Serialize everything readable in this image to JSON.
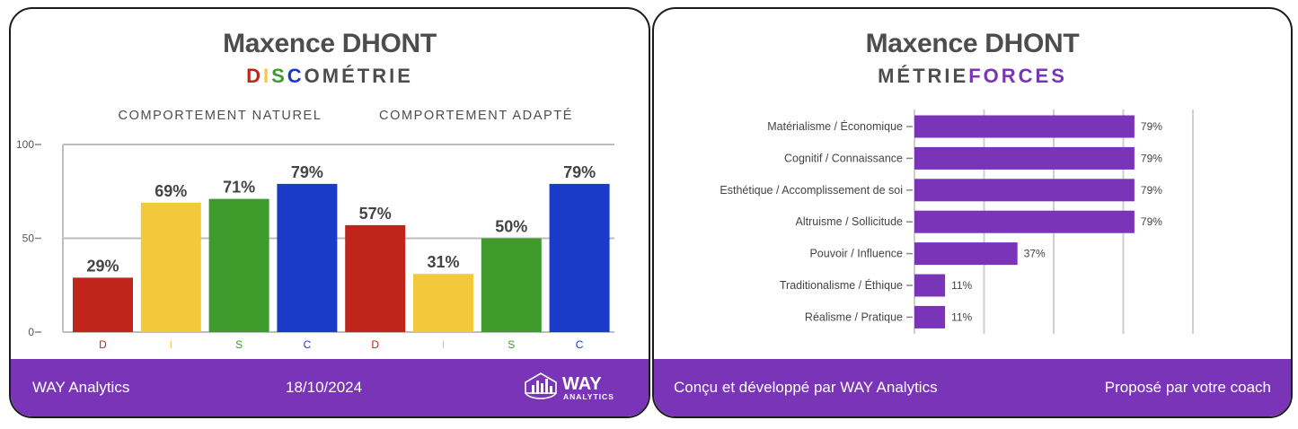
{
  "left": {
    "name": "Maxence DHONT",
    "subtitle_letters": [
      {
        "t": "D",
        "color": "#c0251c"
      },
      {
        "t": "I",
        "color": "#f1c93a"
      },
      {
        "t": "S",
        "color": "#3d9a2b"
      },
      {
        "t": "C",
        "color": "#1a3bc8"
      },
      {
        "t": "OMÉTRIE",
        "color": "#4d4d4d"
      }
    ],
    "footer": {
      "brand": "WAY Analytics",
      "date": "18/10/2024"
    },
    "logo": {
      "word": "WAY",
      "sub": "ANALYTICS"
    }
  },
  "right": {
    "name": "Maxence DHONT",
    "subtitle_parts": [
      {
        "t": "MÉTRIE",
        "color": "#4d4d4d"
      },
      {
        "t": "FORCES",
        "color": "#7a34b8"
      }
    ],
    "footer": {
      "left": "Conçu et développé par WAY Analytics",
      "right": "Proposé par votre coach"
    }
  },
  "chart_data": [
    {
      "type": "bar",
      "title": "DISCOMÉTRIE",
      "groups": [
        "COMPORTEMENT NATUREL",
        "COMPORTEMENT ADAPTÉ"
      ],
      "categories": [
        "D",
        "I",
        "S",
        "C",
        "D",
        "I",
        "S",
        "C"
      ],
      "values": [
        29,
        69,
        71,
        79,
        57,
        31,
        50,
        79
      ],
      "value_labels": [
        "29%",
        "69%",
        "71%",
        "79%",
        "57%",
        "31%",
        "50%",
        "79%"
      ],
      "colors": [
        "#c0251c",
        "#f1c93a",
        "#3d9a2b",
        "#1a3bc8",
        "#c0251c",
        "#f1c93a",
        "#3d9a2b",
        "#1a3bc8"
      ],
      "ylim": [
        0,
        100
      ],
      "yticks": [
        0,
        50,
        100
      ],
      "grid": true
    },
    {
      "type": "bar",
      "orientation": "horizontal",
      "title": "MÉTRIEFORCES",
      "categories": [
        "Matérialisme / Économique",
        "Cognitif / Connaissance",
        "Esthétique / Accomplissement de soi",
        "Altruisme / Sollicitude",
        "Pouvoir / Influence",
        "Traditionalisme / Éthique",
        "Réalisme / Pratique"
      ],
      "values": [
        79,
        79,
        79,
        79,
        37,
        11,
        11
      ],
      "value_labels": [
        "79%",
        "79%",
        "79%",
        "79%",
        "37%",
        "11%",
        "11%"
      ],
      "color": "#7a34b8",
      "xlim": [
        0,
        100
      ],
      "grid": true
    }
  ]
}
